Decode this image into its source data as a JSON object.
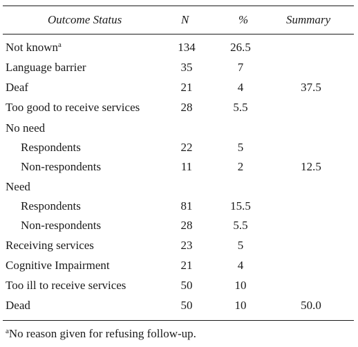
{
  "table": {
    "headers": {
      "label": "Outcome Status",
      "n": "N",
      "pct": "%",
      "summary": "Summary"
    },
    "rows": [
      {
        "label": "Not known",
        "sup": "a",
        "n": "134",
        "pct": "26.5",
        "summary": ""
      },
      {
        "label": "Language barrier",
        "n": "35",
        "pct": "7",
        "summary": ""
      },
      {
        "label": "Deaf",
        "n": "21",
        "pct": "4",
        "summary": "37.5"
      },
      {
        "label": "Too good to receive services",
        "n": "28",
        "pct": "5.5",
        "summary": ""
      },
      {
        "label": "No need",
        "n": "",
        "pct": "",
        "summary": ""
      },
      {
        "label": "Respondents",
        "n": "22",
        "pct": "5",
        "summary": ""
      },
      {
        "label": "Non-respondents",
        "n": "11",
        "pct": "2",
        "summary": "12.5"
      },
      {
        "label": "Need",
        "n": "",
        "pct": "",
        "summary": ""
      },
      {
        "label": "Respondents",
        "n": "81",
        "pct": "15.5",
        "summary": ""
      },
      {
        "label": "Non-respondents",
        "n": "28",
        "pct": "5.5",
        "summary": ""
      },
      {
        "label": "Receiving services",
        "n": "23",
        "pct": "5",
        "summary": ""
      },
      {
        "label": "Cognitive Impairment",
        "n": "21",
        "pct": "4",
        "summary": ""
      },
      {
        "label": "Too ill to receive services",
        "n": "50",
        "pct": "10",
        "summary": ""
      },
      {
        "label": "Dead",
        "n": "50",
        "pct": "10",
        "summary": "50.0"
      }
    ]
  },
  "footnote": {
    "marker": "a",
    "text": "No reason given for refusing follow-up."
  }
}
